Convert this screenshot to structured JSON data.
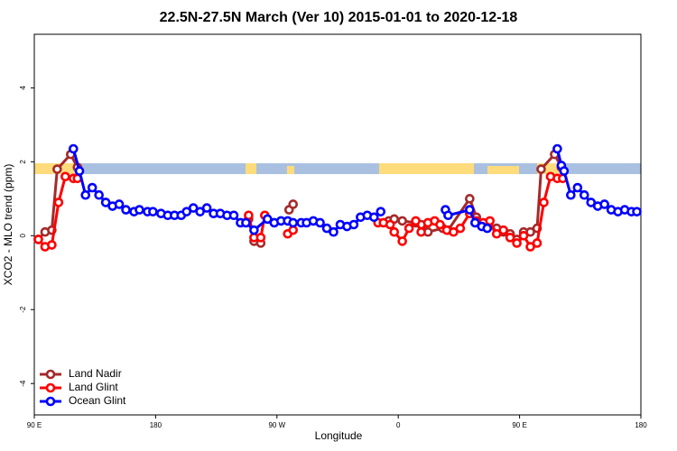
{
  "chart_data": {
    "type": "line",
    "title": "22.5N-27.5N March (Ver 10)   2015-01-01 to 2020-12-18",
    "xlabel": "Longitude",
    "ylabel": "XCO2 - MLO trend (ppm)",
    "xlim": [
      90,
      540
    ],
    "ylim": [
      -4.85,
      5.45
    ],
    "xticks": [
      {
        "value": 90,
        "label": "90 E"
      },
      {
        "value": 180,
        "label": "180"
      },
      {
        "value": 270,
        "label": "90 W"
      },
      {
        "value": 360,
        "label": "0"
      },
      {
        "value": 450,
        "label": "90 E"
      },
      {
        "value": 540,
        "label": "180"
      }
    ],
    "yticks": [
      -4,
      -2,
      0,
      2,
      4
    ],
    "legend": "bottom-left",
    "series": [
      {
        "name": "Land Nadir",
        "color": "#a52a2a",
        "x": [
          93,
          98,
          103,
          107,
          117,
          122,
          null,
          249,
          253,
          258,
          null,
          279,
          282,
          null,
          353,
          357,
          363,
          373,
          377,
          382,
          393,
          397,
          413,
          418,
          423,
          433,
          438,
          443,
          448,
          453,
          458,
          463,
          466,
          476,
          481
        ],
        "values": [
          -0.1,
          0.1,
          0.15,
          1.8,
          2.2,
          1.85,
          null,
          0.45,
          -0.15,
          -0.2,
          null,
          0.7,
          0.85,
          null,
          0.4,
          0.45,
          0.4,
          0.35,
          0.3,
          0.1,
          0.2,
          0.15,
          1.0,
          0.5,
          0.3,
          0.2,
          0.1,
          0.05,
          -0.1,
          0.1,
          0.1,
          0.2,
          1.8,
          2.2,
          1.85
        ]
      },
      {
        "name": "Land Glint",
        "color": "#ff0000",
        "x": [
          93,
          98,
          103,
          108,
          113,
          119,
          122,
          null,
          249,
          253,
          258,
          261,
          null,
          278,
          282,
          null,
          345,
          349,
          354,
          357,
          363,
          368,
          373,
          377,
          382,
          387,
          391,
          396,
          401,
          406,
          413,
          418,
          423,
          428,
          433,
          438,
          443,
          448,
          453,
          458,
          463,
          468,
          473,
          478,
          482
        ],
        "values": [
          -0.1,
          -0.3,
          -0.25,
          0.9,
          1.6,
          1.55,
          1.55,
          null,
          0.55,
          -0.05,
          -0.05,
          0.55,
          null,
          0.05,
          0.15,
          null,
          0.35,
          0.35,
          0.3,
          0.1,
          -0.15,
          0.2,
          0.4,
          0.1,
          0.35,
          0.4,
          0.3,
          0.15,
          0.1,
          0.2,
          0.6,
          0.4,
          0.35,
          0.4,
          0.05,
          0.15,
          -0.05,
          -0.2,
          0.0,
          -0.3,
          -0.2,
          0.9,
          1.6,
          1.55,
          1.55
        ]
      },
      {
        "name": "Ocean Glint",
        "color": "#0000ff",
        "x": [
          119,
          123.5,
          128,
          133,
          138,
          143,
          148,
          153,
          158,
          164,
          168,
          174,
          178,
          184,
          189,
          194,
          199,
          203,
          208,
          213,
          218,
          223,
          228,
          233,
          238,
          243,
          247,
          253,
          263,
          268,
          273,
          278,
          282,
          288,
          292,
          297,
          302,
          307,
          312,
          317,
          322,
          327,
          332,
          337,
          342,
          347,
          null,
          395,
          397,
          413,
          417,
          422,
          426,
          null,
          478,
          481,
          483,
          488,
          493,
          498,
          503,
          508,
          513,
          518,
          523,
          528,
          533,
          537
        ],
        "values": [
          2.35,
          1.75,
          1.1,
          1.3,
          1.1,
          0.9,
          0.8,
          0.85,
          0.7,
          0.65,
          0.7,
          0.65,
          0.65,
          0.6,
          0.55,
          0.55,
          0.55,
          0.65,
          0.75,
          0.65,
          0.75,
          0.6,
          0.6,
          0.55,
          0.55,
          0.35,
          0.35,
          0.15,
          0.45,
          0.35,
          0.4,
          0.4,
          0.35,
          0.35,
          0.35,
          0.4,
          0.35,
          0.2,
          0.1,
          0.3,
          0.25,
          0.3,
          0.5,
          0.55,
          0.5,
          0.65,
          null,
          0.7,
          0.55,
          0.7,
          0.35,
          0.25,
          0.2,
          null,
          2.35,
          1.9,
          1.75,
          1.1,
          1.3,
          1.1,
          0.9,
          0.8,
          0.85,
          0.7,
          0.65,
          0.7,
          0.65,
          0.65
        ]
      }
    ]
  }
}
